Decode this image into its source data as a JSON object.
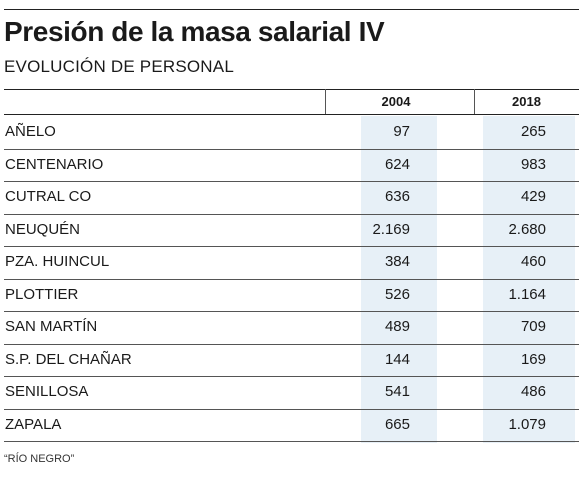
{
  "title": "Presión de la masa salarial IV",
  "subtitle": "EVOLUCIÓN DE PERSONAL",
  "columns": [
    "2004",
    "2018"
  ],
  "rows": [
    {
      "name": "AÑELO",
      "v2004": "97",
      "v2018": "265"
    },
    {
      "name": "CENTENARIO",
      "v2004": "624",
      "v2018": "983"
    },
    {
      "name": "CUTRAL CO",
      "v2004": "636",
      "v2018": "429"
    },
    {
      "name": "NEUQUÉN",
      "v2004": "2.169",
      "v2018": "2.680"
    },
    {
      "name": "PZA. HUINCUL",
      "v2004": "384",
      "v2018": "460"
    },
    {
      "name": "PLOTTIER",
      "v2004": "526",
      "v2018": "1.164"
    },
    {
      "name": "SAN MARTÍN",
      "v2004": "489",
      "v2018": "709"
    },
    {
      "name": "S.P. DEL CHAÑAR",
      "v2004": "144",
      "v2018": "169"
    },
    {
      "name": "SENILLOSA",
      "v2004": "541",
      "v2018": "486"
    },
    {
      "name": "ZAPALA",
      "v2004": "665",
      "v2018": "1.079"
    }
  ],
  "footnote": "“RÍO NEGRO”",
  "colors": {
    "text": "#1a1a1a",
    "column_shading": "#e7f0f7",
    "rules": "#555555"
  }
}
